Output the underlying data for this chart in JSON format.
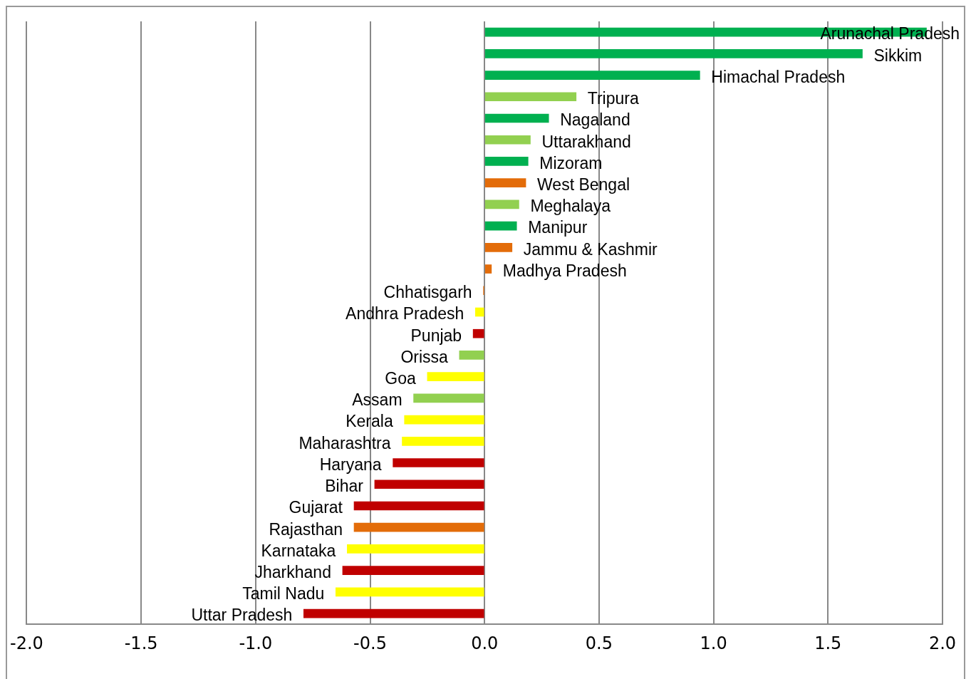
{
  "chart_data": {
    "type": "bar",
    "orientation": "horizontal",
    "categories": [
      "Arunachal Pradesh",
      "Sikkim",
      "Himachal Pradesh",
      "Tripura",
      "Nagaland",
      "Uttarakhand",
      "Mizoram",
      "West Bengal",
      "Meghalaya",
      "Manipur",
      "Jammu & Kashmir",
      "Madhya Pradesh",
      "Chhatisgarh",
      "Andhra Pradesh",
      "Punjab",
      "Orissa",
      "Goa",
      "Assam",
      "Kerala",
      "Maharashtra",
      "Haryana",
      "Bihar",
      "Gujarat",
      "Rajasthan",
      "Karnataka",
      "Jharkhand",
      "Tamil Nadu",
      "Uttar Pradesh"
    ],
    "values": [
      1.93,
      1.65,
      0.94,
      0.4,
      0.28,
      0.2,
      0.19,
      0.18,
      0.15,
      0.14,
      0.12,
      0.03,
      -0.005,
      -0.04,
      -0.05,
      -0.11,
      -0.25,
      -0.31,
      -0.35,
      -0.36,
      -0.4,
      -0.48,
      -0.57,
      -0.57,
      -0.6,
      -0.62,
      -0.65,
      -0.79
    ],
    "colors": [
      "#00b050",
      "#00b050",
      "#00b050",
      "#92d050",
      "#00b050",
      "#92d050",
      "#00b050",
      "#e36c09",
      "#92d050",
      "#00b050",
      "#e36c09",
      "#e36c09",
      "#e36c09",
      "#ffff00",
      "#c00000",
      "#92d050",
      "#ffff00",
      "#92d050",
      "#ffff00",
      "#ffff00",
      "#c00000",
      "#c00000",
      "#c00000",
      "#e36c09",
      "#ffff00",
      "#c00000",
      "#ffff00",
      "#c00000"
    ],
    "xlim": [
      -2,
      2
    ],
    "xticks": [
      {
        "value": -2,
        "label": "-2.0"
      },
      {
        "value": -1.5,
        "label": "-1.5"
      },
      {
        "value": -1,
        "label": "-1.0"
      },
      {
        "value": -0.5,
        "label": "-0.5"
      },
      {
        "value": 0,
        "label": "0.0"
      },
      {
        "value": 0.5,
        "label": "0.5"
      },
      {
        "value": 1,
        "label": "1.0"
      },
      {
        "value": 1.5,
        "label": "1.5"
      },
      {
        "value": 2,
        "label": "2.0"
      }
    ],
    "grid": "x",
    "legend": false
  }
}
